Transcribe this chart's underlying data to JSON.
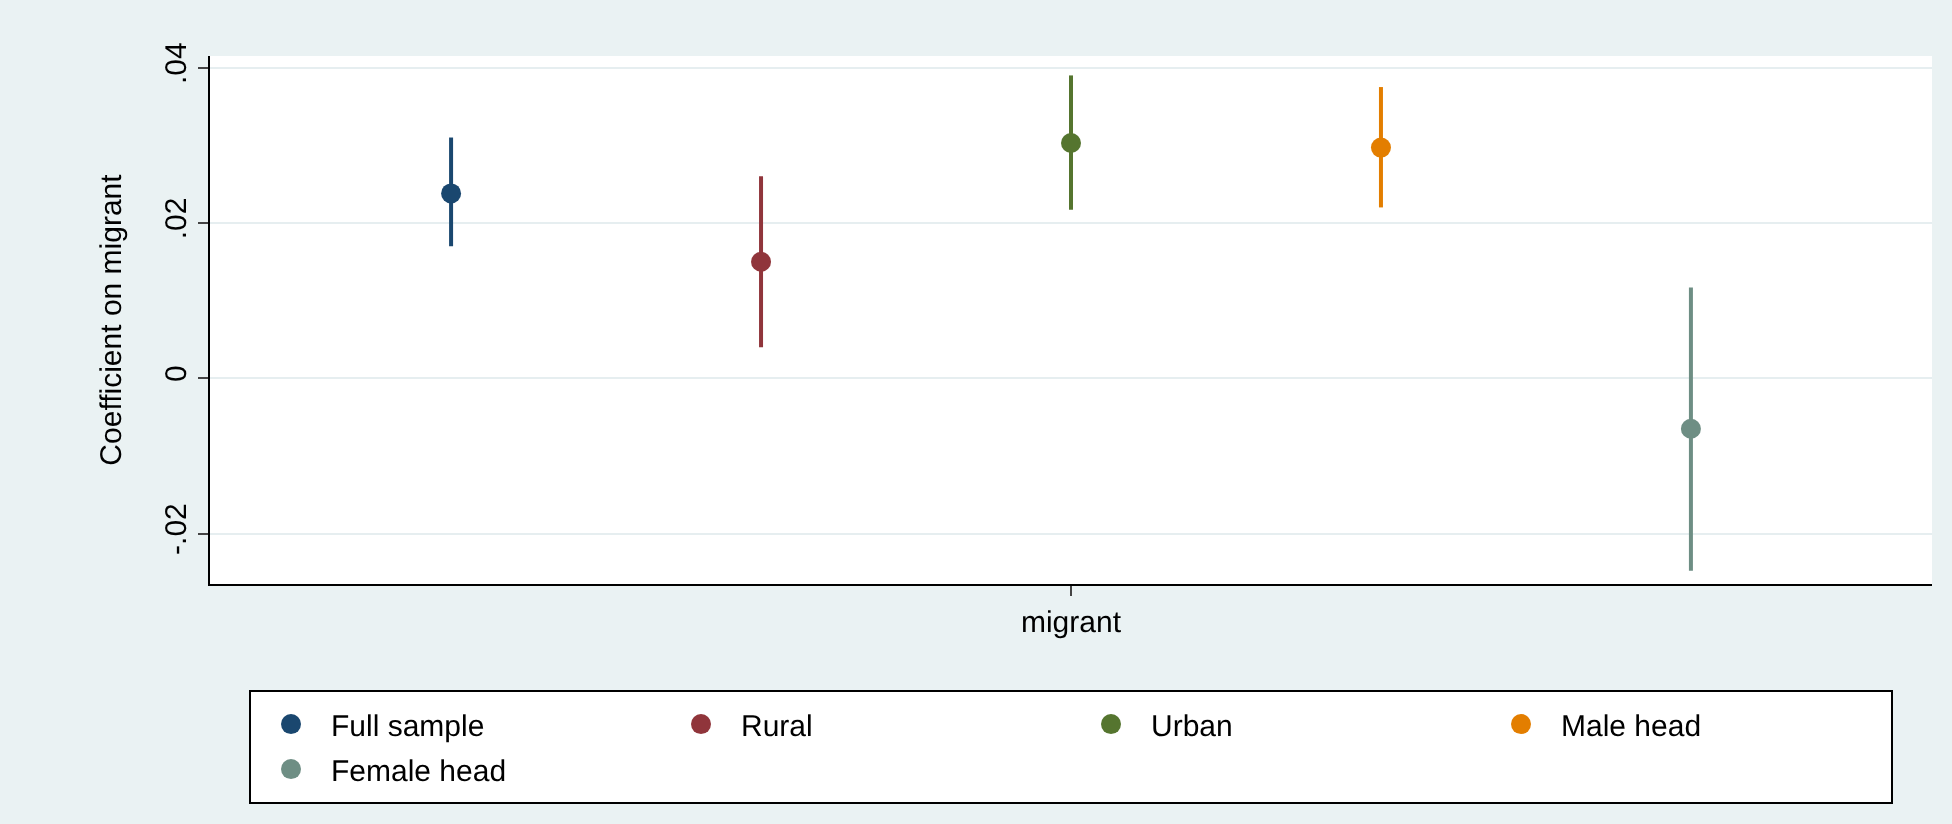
{
  "chart_data": {
    "type": "scatter",
    "ylabel": "Coefficient on migrant",
    "categories": [
      "migrant"
    ],
    "series": [
      {
        "name": "Full sample",
        "color": "#1a476f",
        "values": [
          0.0238
        ],
        "errors": [
          [
            0.017,
            0.031
          ]
        ]
      },
      {
        "name": "Rural",
        "color": "#90353b",
        "values": [
          0.015
        ],
        "errors": [
          [
            0.004,
            0.026
          ]
        ]
      },
      {
        "name": "Urban",
        "color": "#55752f",
        "values": [
          0.0303
        ],
        "errors": [
          [
            0.0217,
            0.039
          ]
        ]
      },
      {
        "name": "Male head",
        "color": "#e37e00",
        "values": [
          0.0297
        ],
        "errors": [
          [
            0.022,
            0.0375
          ]
        ]
      },
      {
        "name": "Female head",
        "color": "#6e8e84",
        "values": [
          -0.0065
        ],
        "errors": [
          [
            -0.0248,
            0.0117
          ]
        ]
      }
    ],
    "ylim": [
      -0.0265,
      0.0415
    ],
    "yticks": [
      {
        "value": 0.04,
        "label": ".04"
      },
      {
        "value": 0.02,
        "label": ".02"
      },
      0,
      {
        "value": -0.02,
        "label": "-.02"
      }
    ],
    "grid": "y",
    "legend": "bottom",
    "marker": "circle"
  }
}
